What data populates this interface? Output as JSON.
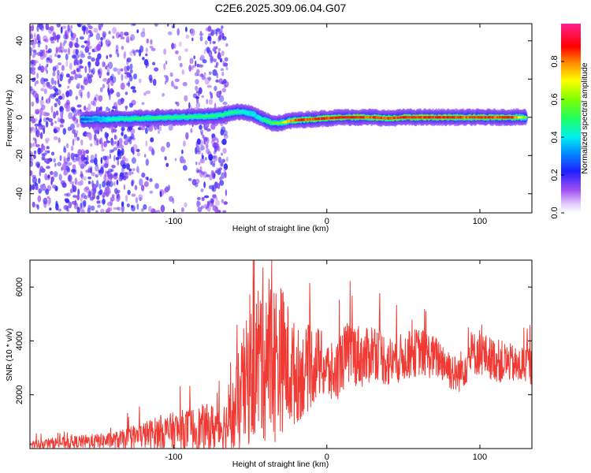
{
  "title": "C2E6.2025.309.06.04.G07",
  "colors": {
    "snr_line": "#f03a33",
    "spectrogram_scatter": "#8f38ec",
    "frame": "#000000"
  },
  "chart_data": [
    {
      "type": "heatmap",
      "name": "spectrogram",
      "xlabel": "Height of straight line (km)",
      "ylabel": "Frequency (Hz)",
      "xlim": [
        -194,
        134
      ],
      "ylim": [
        -50,
        49
      ],
      "xticks": [
        -100,
        0,
        100
      ],
      "yticks": [
        -40,
        -20,
        0,
        20,
        40
      ],
      "xtick_labels": [
        "-100",
        "0",
        "100"
      ],
      "ytick_labels": [
        "-40",
        "-20",
        "0",
        "20",
        "40"
      ],
      "grid": false,
      "colorbar": {
        "label": "Normalized spectral amplitude",
        "range": [
          0,
          1
        ],
        "ticks": [
          0.0,
          0.2,
          0.4,
          0.6,
          0.8
        ],
        "tick_labels": [
          "0.0",
          "0.2",
          "0.4",
          "0.6",
          "0.8"
        ],
        "colormap": "rainbow (white-violet-blue-cyan-green-yellow-red-magenta)",
        "position": "right"
      },
      "ridge": {
        "description": "dominant frequency trace vs height",
        "x": [
          -160,
          -140,
          -120,
          -100,
          -80,
          -70,
          -62,
          -55,
          -48,
          -42,
          -36,
          -30,
          -25,
          -20,
          -10,
          0,
          10,
          20,
          30,
          40,
          50,
          60,
          70,
          80,
          90,
          100,
          110,
          120,
          130
        ],
        "y": [
          -1,
          -1,
          -0.5,
          0,
          0.5,
          1,
          2.5,
          3,
          1.5,
          -1,
          -3,
          -3,
          -2,
          -1.5,
          -1,
          -0.5,
          0,
          0,
          0,
          -0.5,
          0,
          0,
          0,
          0,
          0,
          0,
          0,
          0,
          0
        ],
        "amplitude": [
          0.25,
          0.45,
          0.5,
          0.5,
          0.5,
          0.5,
          0.5,
          0.45,
          0.4,
          0.45,
          0.55,
          0.6,
          0.75,
          0.85,
          0.85,
          0.9,
          0.9,
          0.9,
          0.85,
          0.85,
          0.9,
          0.9,
          0.9,
          0.9,
          0.85,
          0.9,
          0.85,
          0.9,
          0.6
        ]
      },
      "scatter_regions": [
        {
          "x_range": [
            -194,
            -65
          ],
          "y_range": [
            -50,
            49
          ],
          "amplitude": [
            0.08,
            0.22
          ]
        }
      ]
    },
    {
      "type": "line",
      "name": "snr",
      "xlabel": "Height of straight line (km)",
      "ylabel": "SNR (10 * v/v)",
      "xlim": [
        -194,
        134
      ],
      "ylim": [
        0,
        7000
      ],
      "xticks": [
        -100,
        0,
        100
      ],
      "yticks": [
        2000,
        4000,
        6000
      ],
      "xtick_labels": [
        "-100",
        "0",
        "100"
      ],
      "ytick_labels": [
        "2000",
        "4000",
        "6000"
      ],
      "grid": false,
      "series": [
        {
          "x": [
            -194,
            -180,
            -160,
            -140,
            -130,
            -120,
            -110,
            -100,
            -90,
            -80,
            -70,
            -65,
            -60,
            -55,
            -50,
            -45,
            -40,
            -35,
            -30,
            -25,
            -20,
            -15,
            -10,
            -5,
            0,
            5,
            10,
            15,
            20,
            25,
            30,
            35,
            40,
            45,
            50,
            55,
            60,
            65,
            70,
            75,
            80,
            85,
            90,
            95,
            100,
            105,
            110,
            115,
            120,
            125,
            130,
            134
          ],
          "y": [
            150,
            200,
            250,
            300,
            350,
            500,
            600,
            650,
            700,
            750,
            800,
            900,
            1300,
            2000,
            2700,
            3300,
            3600,
            3200,
            3400,
            3000,
            2700,
            2800,
            3100,
            3200,
            2900,
            2700,
            3300,
            3600,
            3500,
            3300,
            3700,
            3500,
            3200,
            3300,
            3400,
            3500,
            3600,
            3500,
            3400,
            3300,
            3000,
            2700,
            3100,
            3500,
            3600,
            3400,
            3300,
            3200,
            3200,
            3000,
            3200,
            3000
          ],
          "band": [
            150,
            200,
            250,
            300,
            400,
            500,
            600,
            700,
            800,
            900,
            900,
            1000,
            1600,
            2400,
            2500,
            3000,
            3400,
            3200,
            2800,
            2400,
            1800,
            1600,
            1600,
            1300,
            1200,
            1100,
            1200,
            1200,
            1200,
            1100,
            1100,
            1000,
            1000,
            900,
            900,
            900,
            900,
            900,
            800,
            800,
            800,
            700,
            800,
            800,
            900,
            800,
            800,
            800,
            700,
            700,
            800,
            700
          ]
        }
      ]
    }
  ]
}
